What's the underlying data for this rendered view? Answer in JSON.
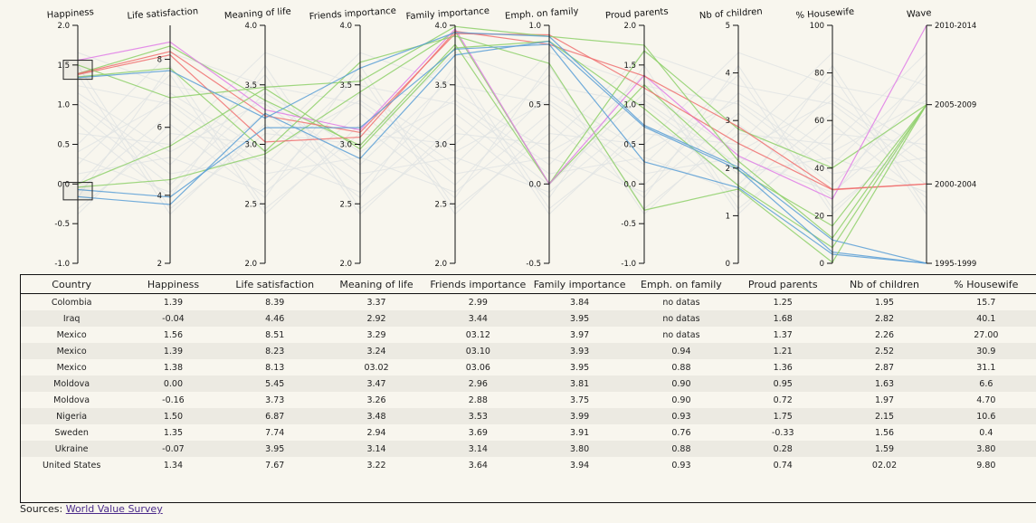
{
  "chart_data": {
    "type": "parallel-coordinates",
    "axes": [
      {
        "name": "Happiness",
        "min": -1.0,
        "max": 2.0,
        "ticks": [
          "-1.0",
          "-0.5",
          "0.0",
          "0.5",
          "1.0",
          "1.5",
          "2.0"
        ]
      },
      {
        "name": "Life satisfaction",
        "min": 2,
        "max": 9,
        "ticks": [
          "2",
          "4",
          "6",
          "8"
        ]
      },
      {
        "name": "Meaning of life",
        "min": 2.0,
        "max": 4.0,
        "ticks": [
          "2.0",
          "2.5",
          "3.0",
          "3.5",
          "4.0"
        ]
      },
      {
        "name": "Friends importance",
        "min": 2.0,
        "max": 4.0,
        "ticks": [
          "2.0",
          "2.5",
          "3.0",
          "3.5",
          "4.0"
        ]
      },
      {
        "name": "Family importance",
        "min": 2.0,
        "max": 4.0,
        "ticks": [
          "2.0",
          "2.5",
          "3.0",
          "3.5",
          "4.0"
        ]
      },
      {
        "name": "Emph. on family",
        "min": -0.5,
        "max": 1.0,
        "ticks": [
          "-0.5",
          "0.0",
          "0.5",
          "1.0"
        ]
      },
      {
        "name": "Proud parents",
        "min": -1.0,
        "max": 2.0,
        "ticks": [
          "-1.0",
          "-0.5",
          "0.0",
          "0.5",
          "1.0",
          "1.5",
          "2.0"
        ]
      },
      {
        "name": "Nb of children",
        "min": 0,
        "max": 5,
        "ticks": [
          "0",
          "1",
          "2",
          "3",
          "4",
          "5"
        ]
      },
      {
        "name": "% Housewife",
        "min": 0,
        "max": 100,
        "ticks": [
          "0",
          "20",
          "40",
          "60",
          "80",
          "100"
        ]
      },
      {
        "name": "Wave",
        "categorical": true,
        "ticks": [
          "1995-1999",
          "2000-2004",
          "2005-2009",
          "2010-2014"
        ]
      }
    ],
    "brushes": [
      {
        "axis": "Happiness",
        "range": [
          1.32,
          1.56
        ]
      },
      {
        "axis": "Happiness",
        "range": [
          -0.2,
          0.02
        ]
      }
    ],
    "colors": {
      "1995-1999": "#5b9fd6",
      "2000-2004": "#f07070",
      "2005-2009": "#8ed06a",
      "2010-2014": "#e07de6",
      "background": "#e0e3e3"
    },
    "series": [
      {
        "country": "Colombia",
        "wave": "2005-2009",
        "values": [
          1.39,
          8.39,
          3.37,
          2.99,
          3.84,
          0.0,
          1.25,
          1.95,
          15.7
        ]
      },
      {
        "country": "Iraq",
        "wave": "2005-2009",
        "values": [
          -0.04,
          4.46,
          2.92,
          3.44,
          3.95,
          0.0,
          1.68,
          2.82,
          40.1
        ]
      },
      {
        "country": "Mexico",
        "wave": "2010-2014",
        "values": [
          1.56,
          8.51,
          3.29,
          3.12,
          3.97,
          0.0,
          1.37,
          2.26,
          27.0
        ]
      },
      {
        "country": "Mexico",
        "wave": "2000-2004",
        "values": [
          1.39,
          8.23,
          3.24,
          3.1,
          3.93,
          0.94,
          1.21,
          2.52,
          30.9
        ]
      },
      {
        "country": "Mexico",
        "wave": "2000-2004",
        "values": [
          1.38,
          8.13,
          3.02,
          3.06,
          3.95,
          0.88,
          1.36,
          2.87,
          31.1
        ]
      },
      {
        "country": "Moldova",
        "wave": "2005-2009",
        "values": [
          0.0,
          5.45,
          3.47,
          2.96,
          3.81,
          0.9,
          0.95,
          1.63,
          6.6
        ]
      },
      {
        "country": "Moldova",
        "wave": "1995-1999",
        "values": [
          -0.16,
          3.73,
          3.26,
          2.88,
          3.75,
          0.9,
          0.72,
          1.97,
          4.7
        ]
      },
      {
        "country": "Nigeria",
        "wave": "2005-2009",
        "values": [
          1.5,
          6.87,
          3.48,
          3.53,
          3.99,
          0.93,
          1.75,
          2.15,
          10.6
        ]
      },
      {
        "country": "Sweden",
        "wave": "2005-2009",
        "values": [
          1.35,
          7.74,
          2.94,
          3.69,
          3.91,
          0.76,
          -0.33,
          1.56,
          0.4
        ]
      },
      {
        "country": "Ukraine",
        "wave": "1995-1999",
        "values": [
          -0.07,
          3.95,
          3.14,
          3.14,
          3.8,
          0.88,
          0.28,
          1.59,
          3.8
        ]
      },
      {
        "country": "United States",
        "wave": "1995-1999",
        "values": [
          1.34,
          7.67,
          3.22,
          3.64,
          3.94,
          0.93,
          0.74,
          2.02,
          9.8
        ]
      }
    ]
  },
  "table": {
    "headers": [
      "Country",
      "Happiness",
      "Life satisfaction",
      "Meaning of life",
      "Friends importance",
      "Family importance",
      "Emph. on family",
      "Proud parents",
      "Nb of children",
      "% Housewife"
    ],
    "rows": [
      [
        "Colombia",
        "1.39",
        "8.39",
        "3.37",
        "2.99",
        "3.84",
        "no datas",
        "1.25",
        "1.95",
        "15.7"
      ],
      [
        "Iraq",
        "-0.04",
        "4.46",
        "2.92",
        "3.44",
        "3.95",
        "no datas",
        "1.68",
        "2.82",
        "40.1"
      ],
      [
        "Mexico",
        "1.56",
        "8.51",
        "3.29",
        "03.12",
        "3.97",
        "no datas",
        "1.37",
        "2.26",
        "27.00"
      ],
      [
        "Mexico",
        "1.39",
        "8.23",
        "3.24",
        "03.10",
        "3.93",
        "0.94",
        "1.21",
        "2.52",
        "30.9"
      ],
      [
        "Mexico",
        "1.38",
        "8.13",
        "03.02",
        "03.06",
        "3.95",
        "0.88",
        "1.36",
        "2.87",
        "31.1"
      ],
      [
        "Moldova",
        "0.00",
        "5.45",
        "3.47",
        "2.96",
        "3.81",
        "0.90",
        "0.95",
        "1.63",
        "6.6"
      ],
      [
        "Moldova",
        "-0.16",
        "3.73",
        "3.26",
        "2.88",
        "3.75",
        "0.90",
        "0.72",
        "1.97",
        "4.70"
      ],
      [
        "Nigeria",
        "1.50",
        "6.87",
        "3.48",
        "3.53",
        "3.99",
        "0.93",
        "1.75",
        "2.15",
        "10.6"
      ],
      [
        "Sweden",
        "1.35",
        "7.74",
        "2.94",
        "3.69",
        "3.91",
        "0.76",
        "-0.33",
        "1.56",
        "0.4"
      ],
      [
        "Ukraine",
        "-0.07",
        "3.95",
        "3.14",
        "3.14",
        "3.80",
        "0.88",
        "0.28",
        "1.59",
        "3.80"
      ],
      [
        "United States",
        "1.34",
        "7.67",
        "3.22",
        "3.64",
        "3.94",
        "0.93",
        "0.74",
        "02.02",
        "9.80"
      ]
    ]
  },
  "footer": {
    "sources_label": "Sources:",
    "sources_link": "World Value Survey"
  }
}
